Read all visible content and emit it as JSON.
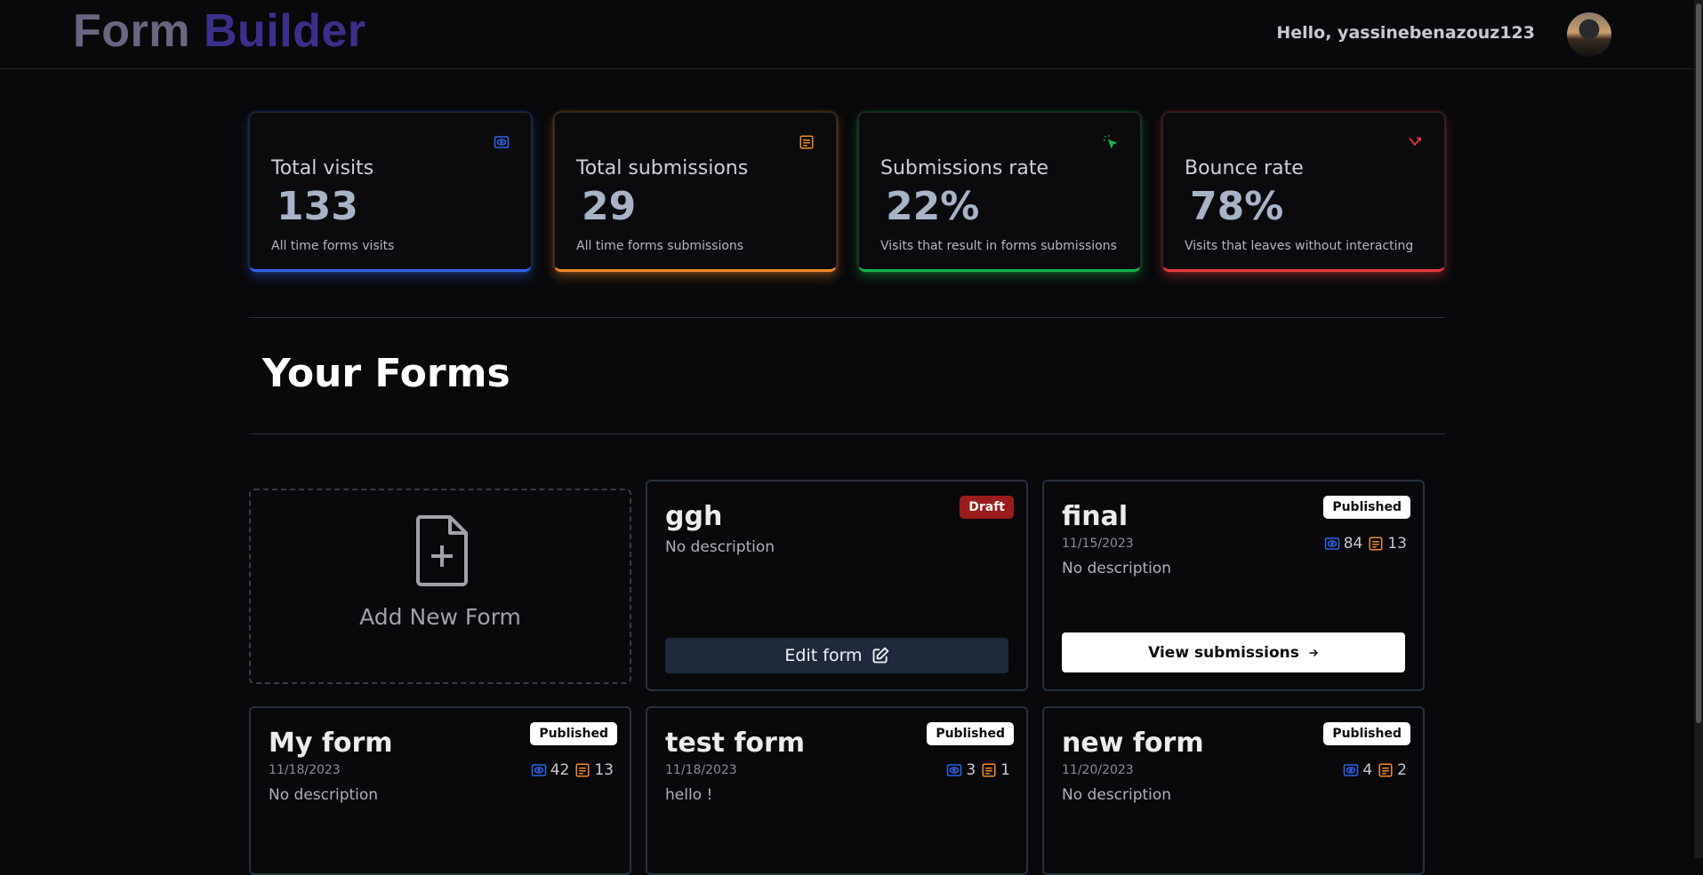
{
  "header": {
    "brand_part1": "Form",
    "brand_part2": "Builder",
    "greeting": "Hello, yassinebenazouz123"
  },
  "stats": [
    {
      "title": "Total visits",
      "value": "133",
      "helper": "All time forms visits",
      "icon": "eye-icon",
      "color": "#2f64e6"
    },
    {
      "title": "Total submissions",
      "value": "29",
      "helper": "All time forms submissions",
      "icon": "form-icon",
      "color": "#f08a24"
    },
    {
      "title": "Submissions rate",
      "value": "22%",
      "helper": "Visits that result in forms submissions",
      "icon": "cursor-click-icon",
      "color": "#16b34a"
    },
    {
      "title": "Bounce rate",
      "value": "78%",
      "helper": "Visits that leaves without interacting",
      "icon": "split-arrow-icon",
      "color": "#e23b3b"
    }
  ],
  "section": {
    "title": "Your Forms"
  },
  "add_form": {
    "label": "Add New Form"
  },
  "forms": [
    {
      "name": "ggh",
      "status": "Draft",
      "description": "No description",
      "action": "Edit form"
    },
    {
      "name": "final",
      "status": "Published",
      "date": "11/15/2023",
      "visits": "84",
      "submissions": "13",
      "description": "No description",
      "action": "View submissions"
    },
    {
      "name": "My form",
      "status": "Published",
      "date": "11/18/2023",
      "visits": "42",
      "submissions": "13",
      "description": "No description"
    },
    {
      "name": "test form",
      "status": "Published",
      "date": "11/18/2023",
      "visits": "3",
      "submissions": "1",
      "description": "hello !"
    },
    {
      "name": "new form",
      "status": "Published",
      "date": "11/20/2023",
      "visits": "4",
      "submissions": "2",
      "description": "No description"
    }
  ]
}
